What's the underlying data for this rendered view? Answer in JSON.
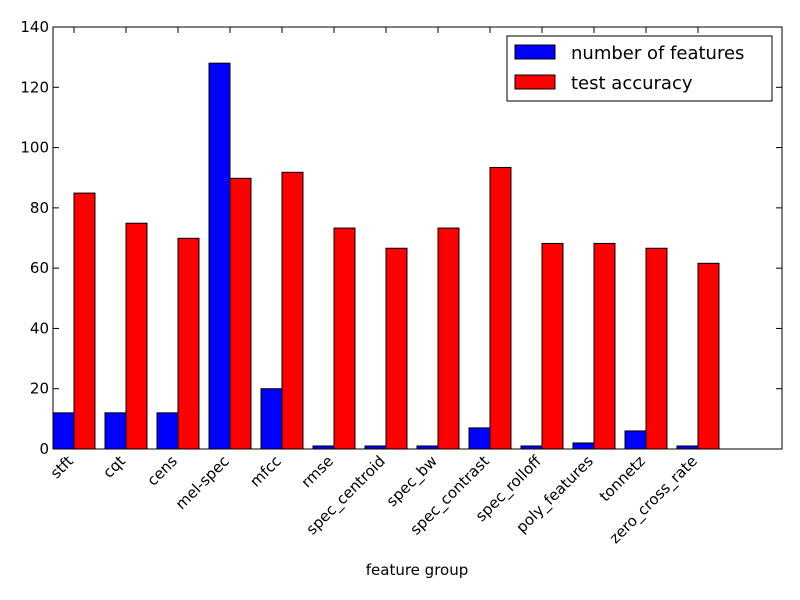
{
  "chart_data": {
    "type": "bar",
    "xlabel": "feature group",
    "ylabel": "",
    "ylim": [
      0,
      140
    ],
    "yticks": [
      0,
      20,
      40,
      60,
      80,
      100,
      120,
      140
    ],
    "grid": false,
    "legend_position": "top-right",
    "categories": [
      "stft",
      "cqt",
      "cens",
      "mel-spec",
      "mfcc",
      "rmse",
      "spec_centroid",
      "spec_bw",
      "spec_contrast",
      "spec_rolloff",
      "poly_features",
      "tonnetz",
      "zero_cross_rate"
    ],
    "series": [
      {
        "name": "number of features",
        "color": "#0000ff",
        "values": [
          12,
          12,
          12,
          128,
          20,
          1,
          1,
          1,
          7,
          1,
          2,
          6,
          1
        ]
      },
      {
        "name": "test accuracy",
        "color": "#ff0000",
        "values": [
          84.9,
          74.9,
          69.9,
          89.8,
          91.8,
          73.3,
          66.6,
          73.3,
          93.4,
          68.2,
          68.2,
          66.6,
          61.6
        ]
      }
    ]
  }
}
